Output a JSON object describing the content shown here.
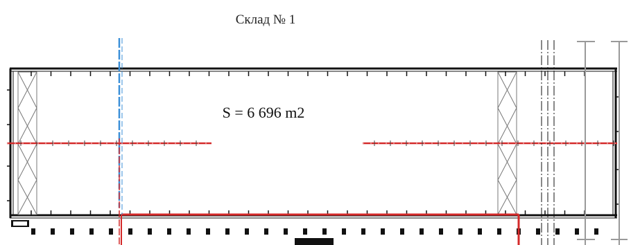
{
  "plan": {
    "title": "Склад № 1",
    "area_label": "S = 6 696 m2"
  },
  "colors": {
    "wall": "#111111",
    "red_line": "#d42a2a",
    "blue_line": "#3a8fd8",
    "grey_line": "#aaaaaa"
  }
}
